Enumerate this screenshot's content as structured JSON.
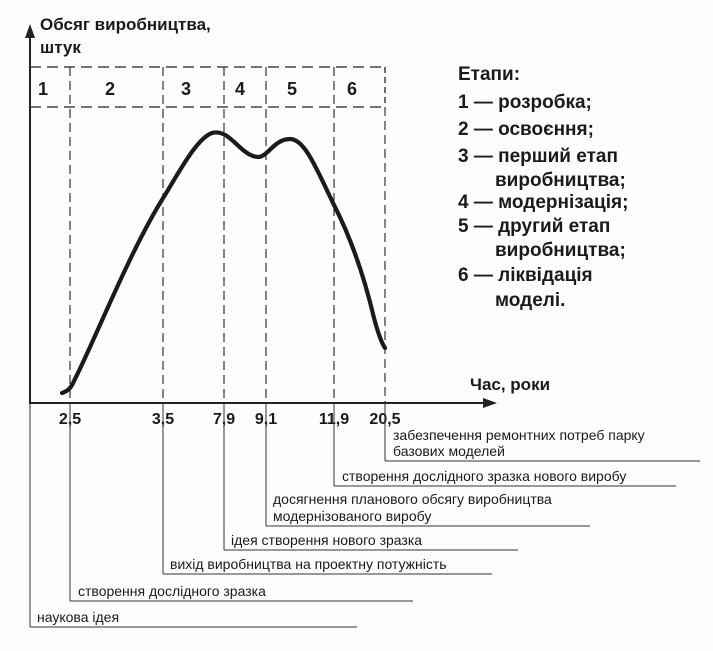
{
  "axes": {
    "y_title": [
      "Обсяг виробництва,",
      "штук"
    ],
    "x_title": "Час, роки"
  },
  "stages": [
    "1",
    "2",
    "3",
    "4",
    "5",
    "6"
  ],
  "ticks": [
    "2,5",
    "3,5",
    "7,9",
    "9,1",
    "11,9",
    "20,5"
  ],
  "legend": {
    "title": "Етапи:",
    "lines": [
      "1 — розробка;",
      "2 — освоєння;",
      "3 — перший етап",
      "виробництва;",
      "4 — модернізація;",
      "5 — другий етап",
      "виробництва;",
      "6 — ліквідація",
      "моделі."
    ]
  },
  "events": [
    [
      "забезпечення ремонтних потреб парку",
      "базових моделей"
    ],
    [
      "створення дослідного зразка нового виробу"
    ],
    [
      "досягнення планового обсягу виробництва",
      "модернізованого виробу"
    ],
    [
      "ідея створення нового зразка"
    ],
    [
      "вихід виробництва на проектну потужність"
    ],
    [
      "створення дослідного зразка"
    ],
    [
      "наукова ідея"
    ]
  ],
  "chart_data": {
    "type": "line",
    "x_ticks": [
      "2,5",
      "3,5",
      "7,9",
      "9,1",
      "11,9",
      "20,5"
    ],
    "stages": [
      "1",
      "2",
      "3",
      "4",
      "5",
      "6"
    ],
    "xlabel": "Час, роки",
    "ylabel": "Обсяг виробництва, штук",
    "curve_shape": "rise, peak, dip, second peak, decline"
  }
}
